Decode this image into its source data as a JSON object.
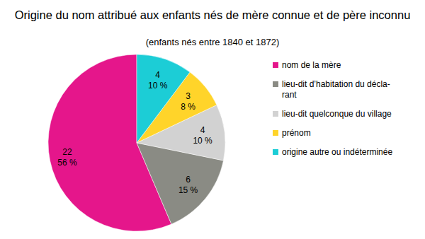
{
  "chart_data": {
    "type": "pie",
    "title": "Origine du nom attribué aux enfants nés de mère connue et de père inconnu",
    "subtitle": "(enfants nés entre 1840 et 1872)",
    "categories": [
      "nom de la mère",
      "lieu-dit d’habitation du décla-\nrant",
      "lieu-dit quelconque du village",
      "prénom",
      "origine autre ou indéterminée"
    ],
    "values": [
      22,
      6,
      4,
      3,
      4
    ],
    "percentages": [
      56,
      15,
      10,
      8,
      10
    ],
    "percentage_labels": [
      "56 %",
      "15 %",
      "10 %",
      "8 %",
      "10 %"
    ],
    "colors": [
      "#e5168b",
      "#8a8b84",
      "#d2d2d2",
      "#ffd42a",
      "#1ccdd6"
    ],
    "data_labels": true,
    "legend": "right"
  }
}
